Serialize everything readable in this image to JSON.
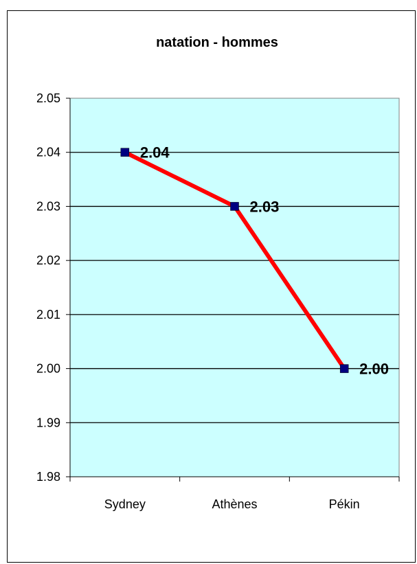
{
  "chart_data": {
    "type": "line",
    "title": "natation - hommes",
    "xlabel": "",
    "ylabel": "",
    "categories": [
      "Sydney",
      "Athènes",
      "Pékin"
    ],
    "series": [
      {
        "values": [
          2.04,
          2.03,
          2.0
        ],
        "data_labels": [
          "2.04",
          "2.03",
          "2.00"
        ],
        "line_color": "#ff0000",
        "marker_color": "#000080"
      }
    ],
    "ylim": [
      1.98,
      2.05
    ],
    "yticks": [
      "1.98",
      "1.99",
      "2.00",
      "2.01",
      "2.02",
      "2.03",
      "2.04",
      "2.05"
    ],
    "grid": true,
    "legend": "none",
    "plot_background": "#ccffff"
  }
}
